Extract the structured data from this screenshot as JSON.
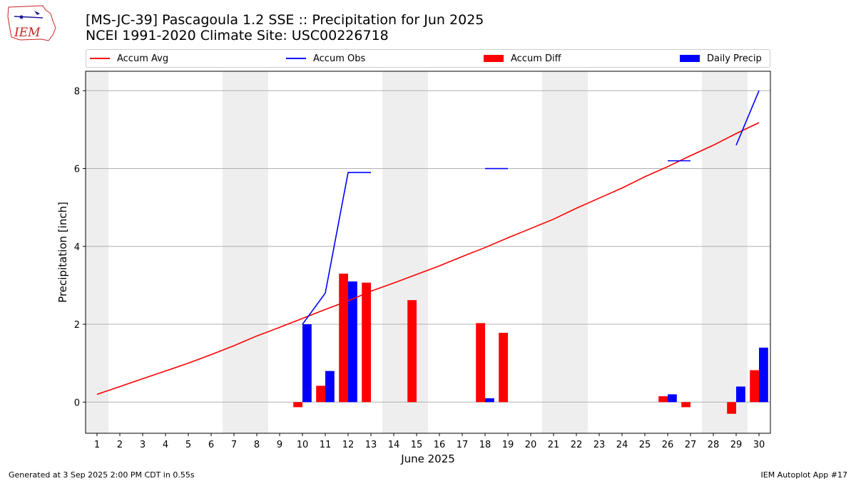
{
  "header": {
    "logo_text": "IEM",
    "title_line1": "[MS-JC-39] Pascagoula 1.2 SSE :: Precipitation for Jun 2025",
    "title_line2": "NCEI 1991-2020 Climate Site: USC00226718"
  },
  "legend": [
    {
      "label": "Accum Avg",
      "kind": "line",
      "color": "#ff0000"
    },
    {
      "label": "Accum Obs",
      "kind": "line",
      "color": "#0000ff"
    },
    {
      "label": "Accum Diff",
      "kind": "box",
      "color": "#ff0000"
    },
    {
      "label": "Daily Precip",
      "kind": "box",
      "color": "#0000ff"
    }
  ],
  "footer": {
    "left": "Generated at 3 Sep 2025 2:00 PM CDT in 0.55s",
    "right": "IEM Autoplot App #17"
  },
  "chart_data": {
    "type": "bar",
    "xlabel": "June 2025",
    "ylabel": "Precipitation [inch]",
    "xlim": [
      0.5,
      30.5
    ],
    "ylim": [
      -0.8,
      8.5
    ],
    "yticks": [
      0,
      2,
      4,
      6,
      8
    ],
    "x_ticks": [
      "1",
      "2",
      "3",
      "4",
      "5",
      "6",
      "7",
      "8",
      "9",
      "10",
      "11",
      "12",
      "13",
      "14",
      "15",
      "16",
      "17",
      "18",
      "19",
      "20",
      "21",
      "22",
      "23",
      "24",
      "25",
      "26",
      "27",
      "28",
      "29",
      "30"
    ],
    "weekend_bands": [
      [
        0.5,
        1.5
      ],
      [
        6.5,
        8.5
      ],
      [
        13.5,
        15.5
      ],
      [
        20.5,
        22.5
      ],
      [
        27.5,
        29.5
      ]
    ],
    "grid": "horizontal",
    "legend_position": "top",
    "series": [
      {
        "name": "Accum Avg",
        "type": "line",
        "color": "#ff0000",
        "x": [
          1,
          2,
          3,
          4,
          5,
          6,
          7,
          8,
          9,
          10,
          11,
          12,
          13,
          14,
          15,
          16,
          17,
          18,
          19,
          20,
          21,
          22,
          23,
          24,
          25,
          26,
          27,
          28,
          29,
          30
        ],
        "y": [
          0.2,
          0.4,
          0.6,
          0.8,
          1.0,
          1.22,
          1.45,
          1.7,
          1.92,
          2.15,
          2.38,
          2.6,
          2.85,
          3.06,
          3.28,
          3.5,
          3.74,
          3.97,
          4.22,
          4.46,
          4.7,
          4.98,
          5.24,
          5.5,
          5.79,
          6.05,
          6.33,
          6.6,
          6.9,
          7.18
        ]
      },
      {
        "name": "Accum Obs",
        "type": "line",
        "color": "#0000ff",
        "segments": [
          {
            "x": [
              10,
              11,
              12,
              13
            ],
            "y": [
              2.0,
              2.8,
              5.9,
              5.9
            ]
          },
          {
            "x": [
              18,
              19
            ],
            "y": [
              6.0,
              6.0
            ]
          },
          {
            "x": [
              26,
              27
            ],
            "y": [
              6.2,
              6.2
            ]
          },
          {
            "x": [
              29,
              30
            ],
            "y": [
              6.6,
              8.0
            ]
          }
        ]
      },
      {
        "name": "Accum Diff",
        "type": "bar",
        "color": "#ff0000",
        "offset": "left",
        "x": [
          10,
          11,
          12,
          13,
          15,
          18,
          19,
          26,
          27,
          29,
          30
        ],
        "y": [
          -0.13,
          0.42,
          3.3,
          3.07,
          2.62,
          2.03,
          1.78,
          0.15,
          -0.13,
          -0.3,
          0.82
        ]
      },
      {
        "name": "Daily Precip",
        "type": "bar",
        "color": "#0000ff",
        "offset": "right",
        "x": [
          10,
          11,
          12,
          18,
          26,
          29,
          30
        ],
        "y": [
          2.0,
          0.8,
          3.1,
          0.1,
          0.2,
          0.4,
          1.4
        ]
      }
    ]
  }
}
